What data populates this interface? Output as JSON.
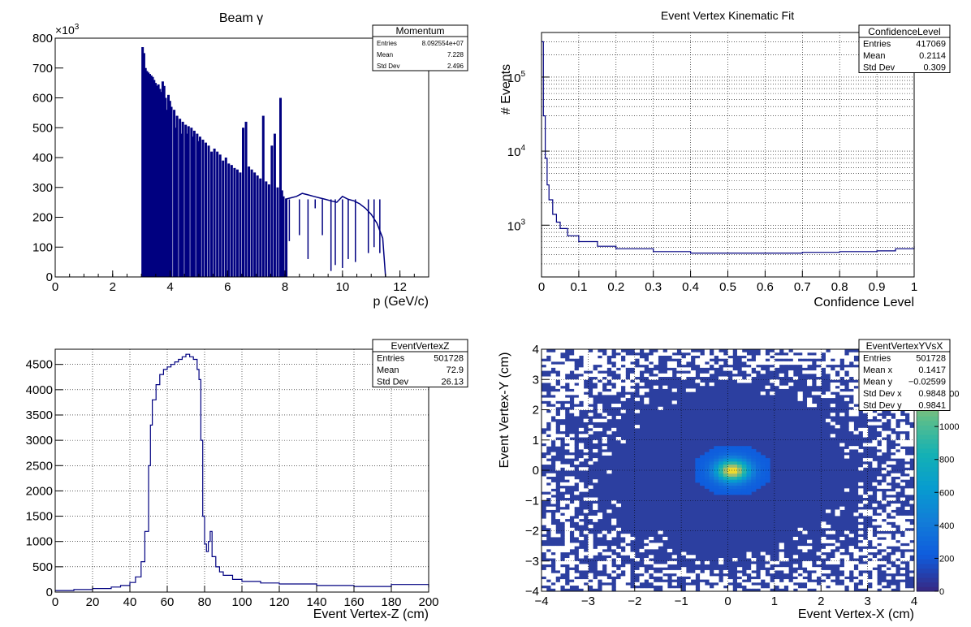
{
  "chart_data": [
    {
      "type": "bar",
      "title": "Beam γ",
      "xlabel": "p (GeV/c)",
      "ylabel": "",
      "y_multiplier": "×10",
      "y_multiplier_exp": "3",
      "xlim": [
        0,
        13
      ],
      "ylim": [
        0,
        800
      ],
      "xticks": [
        "0",
        "2",
        "4",
        "6",
        "8",
        "10",
        "12"
      ],
      "yticks": [
        "0",
        "100",
        "200",
        "300",
        "400",
        "500",
        "600",
        "700",
        "800"
      ],
      "color": "#000080",
      "stats": {
        "title": "Momentum",
        "rows": [
          [
            "Entries",
            "8.092554e+07"
          ],
          [
            "Mean",
            "7.228"
          ],
          [
            "Std Dev",
            "2.496"
          ]
        ]
      },
      "spikes": [
        [
          3.0,
          770
        ],
        [
          3.05,
          750
        ],
        [
          3.1,
          700
        ],
        [
          3.15,
          690
        ],
        [
          3.2,
          685
        ],
        [
          3.25,
          680
        ],
        [
          3.3,
          675
        ],
        [
          3.35,
          670
        ],
        [
          3.4,
          660
        ],
        [
          3.45,
          650
        ],
        [
          3.5,
          640
        ],
        [
          3.55,
          645
        ],
        [
          3.6,
          630
        ],
        [
          3.65,
          620
        ],
        [
          3.7,
          655
        ],
        [
          3.75,
          640
        ],
        [
          3.8,
          600
        ],
        [
          3.85,
          560
        ],
        [
          3.9,
          610
        ],
        [
          3.95,
          590
        ],
        [
          4.0,
          570
        ],
        [
          4.1,
          560
        ],
        [
          4.15,
          500
        ],
        [
          4.2,
          540
        ],
        [
          4.3,
          530
        ],
        [
          4.35,
          480
        ],
        [
          4.4,
          520
        ],
        [
          4.5,
          510
        ],
        [
          4.55,
          480
        ],
        [
          4.6,
          505
        ],
        [
          4.7,
          500
        ],
        [
          4.75,
          470
        ],
        [
          4.8,
          490
        ],
        [
          4.9,
          480
        ],
        [
          4.95,
          455
        ],
        [
          5.0,
          470
        ],
        [
          5.1,
          460
        ],
        [
          5.2,
          450
        ],
        [
          5.3,
          440
        ],
        [
          5.4,
          420
        ],
        [
          5.5,
          430
        ],
        [
          5.6,
          420
        ],
        [
          5.7,
          410
        ],
        [
          5.8,
          390
        ],
        [
          5.9,
          400
        ],
        [
          6.0,
          380
        ],
        [
          6.1,
          375
        ],
        [
          6.2,
          365
        ],
        [
          6.3,
          360
        ],
        [
          6.4,
          350
        ],
        [
          6.5,
          500
        ],
        [
          6.6,
          520
        ],
        [
          6.7,
          370
        ],
        [
          6.8,
          360
        ],
        [
          6.9,
          350
        ],
        [
          7.0,
          340
        ],
        [
          7.1,
          330
        ],
        [
          7.2,
          540
        ],
        [
          7.3,
          320
        ],
        [
          7.4,
          310
        ],
        [
          7.5,
          440
        ],
        [
          7.6,
          480
        ],
        [
          7.7,
          300
        ],
        [
          7.8,
          600
        ],
        [
          7.85,
          290
        ],
        [
          7.9,
          270
        ],
        [
          8.0,
          260
        ]
      ],
      "plateau": [
        [
          8.0,
          260
        ],
        [
          8.2,
          265
        ],
        [
          8.4,
          270
        ],
        [
          8.6,
          280
        ],
        [
          8.8,
          275
        ],
        [
          9.0,
          270
        ],
        [
          9.2,
          265
        ],
        [
          9.4,
          260
        ],
        [
          9.6,
          255
        ],
        [
          9.8,
          250
        ],
        [
          10.0,
          270
        ],
        [
          10.2,
          260
        ],
        [
          10.4,
          255
        ],
        [
          10.6,
          245
        ],
        [
          10.8,
          230
        ],
        [
          11.0,
          210
        ],
        [
          11.2,
          180
        ],
        [
          11.4,
          130
        ],
        [
          11.5,
          0
        ]
      ],
      "dips": [
        [
          8.15,
          120
        ],
        [
          8.5,
          140
        ],
        [
          8.8,
          60
        ],
        [
          9.05,
          230
        ],
        [
          9.3,
          140
        ],
        [
          9.6,
          20
        ],
        [
          9.75,
          40
        ],
        [
          10.0,
          30
        ],
        [
          10.2,
          60
        ],
        [
          10.45,
          50
        ],
        [
          10.9,
          80
        ],
        [
          11.1,
          100
        ],
        [
          11.3,
          80
        ]
      ]
    },
    {
      "type": "line",
      "title": "Event Vertex Kinematic Fit",
      "xlabel": "Confidence Level",
      "ylabel": "# Events",
      "xlim": [
        0,
        1
      ],
      "ylim": [
        200,
        400000
      ],
      "yscale": "log",
      "xticks": [
        "0",
        "0.1",
        "0.2",
        "0.3",
        "0.4",
        "0.5",
        "0.6",
        "0.7",
        "0.8",
        "0.9",
        "1"
      ],
      "yticks": [
        "10",
        "10",
        "10"
      ],
      "ytick_exp": [
        "3",
        "4",
        "5"
      ],
      "color": "#000080",
      "stats": {
        "title": "ConfidenceLevel",
        "rows": [
          [
            "Entries",
            "417069"
          ],
          [
            "Mean",
            "0.2114"
          ],
          [
            "Std Dev",
            "0.309"
          ]
        ]
      },
      "x": [
        0.0,
        0.005,
        0.01,
        0.015,
        0.02,
        0.03,
        0.04,
        0.05,
        0.07,
        0.1,
        0.15,
        0.2,
        0.3,
        0.4,
        0.5,
        0.6,
        0.7,
        0.8,
        0.9,
        0.95,
        1.0
      ],
      "y": [
        300000,
        30000,
        8000,
        3500,
        2200,
        1400,
        1100,
        900,
        720,
        600,
        520,
        480,
        440,
        420,
        420,
        420,
        430,
        440,
        450,
        480,
        520
      ]
    },
    {
      "type": "line",
      "title": "",
      "xlabel": "Event Vertex-Z (cm)",
      "ylabel": "",
      "xlim": [
        0,
        200
      ],
      "ylim": [
        0,
        4800
      ],
      "xticks": [
        "0",
        "20",
        "40",
        "60",
        "80",
        "100",
        "120",
        "140",
        "160",
        "180",
        "200"
      ],
      "yticks": [
        "0",
        "500",
        "1000",
        "1500",
        "2000",
        "2500",
        "3000",
        "3500",
        "4000",
        "4500"
      ],
      "color": "#000080",
      "stats": {
        "title": "EventVertexZ",
        "rows": [
          [
            "Entries",
            "501728"
          ],
          [
            "Mean",
            "72.9"
          ],
          [
            "Std Dev",
            "26.13"
          ]
        ]
      },
      "x": [
        0,
        10,
        20,
        30,
        35,
        40,
        43,
        46,
        48,
        50,
        51,
        52,
        54,
        56,
        58,
        60,
        62,
        64,
        66,
        68,
        70,
        72,
        74,
        76,
        77,
        78,
        79,
        80,
        81,
        82,
        83,
        84,
        86,
        88,
        90,
        95,
        100,
        110,
        120,
        140,
        160,
        180,
        200
      ],
      "y": [
        30,
        50,
        70,
        100,
        130,
        190,
        300,
        600,
        1200,
        2500,
        3300,
        3800,
        4100,
        4300,
        4400,
        4450,
        4500,
        4550,
        4600,
        4650,
        4700,
        4650,
        4600,
        4400,
        4200,
        3000,
        1500,
        950,
        800,
        1000,
        1200,
        700,
        500,
        400,
        330,
        250,
        210,
        180,
        160,
        130,
        110,
        150,
        90
      ]
    },
    {
      "type": "heatmap",
      "title": "",
      "xlabel": "Event Vertex-X (cm)",
      "ylabel": "Event Vertex-Y (cm)",
      "xlim": [
        -4,
        4
      ],
      "ylim": [
        -4,
        4
      ],
      "xticks": [
        "−4",
        "−3",
        "−2",
        "−1",
        "0",
        "1",
        "2",
        "3",
        "4"
      ],
      "yticks": [
        "−4",
        "−3",
        "−2",
        "−1",
        "0",
        "1",
        "2",
        "3",
        "4"
      ],
      "zlim": [
        0,
        1400
      ],
      "zticks": [
        "0",
        "200",
        "400",
        "600",
        "800",
        "1000",
        "1200"
      ],
      "stats": {
        "title": "EventVertexYVsX",
        "rows": [
          [
            "Entries",
            "501728"
          ],
          [
            "Mean x",
            "0.1417"
          ],
          [
            "Mean y",
            "−0.02599"
          ],
          [
            "Std Dev x",
            "0.9848"
          ],
          [
            "Std Dev y",
            "0.9841"
          ]
        ]
      },
      "peak": {
        "x": 0.1,
        "y": 0.0,
        "value": 1400
      }
    }
  ]
}
